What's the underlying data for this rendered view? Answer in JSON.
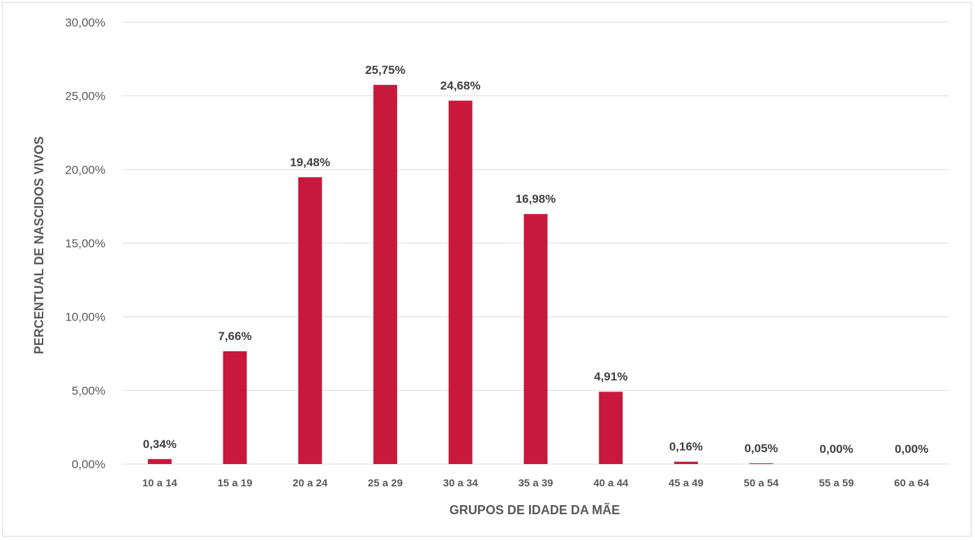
{
  "chart_data": {
    "type": "bar",
    "categories": [
      "10 a 14",
      "15 a 19",
      "20 a 24",
      "25 a 29",
      "30 a 34",
      "35 a 39",
      "40 a 44",
      "45 a 49",
      "50 a 54",
      "55 a 59",
      "60 a 64"
    ],
    "values": [
      0.34,
      7.66,
      19.48,
      25.75,
      24.68,
      16.98,
      4.91,
      0.16,
      0.05,
      0.0,
      0.0
    ],
    "data_labels": [
      "0,34%",
      "7,66%",
      "19,48%",
      "25,75%",
      "24,68%",
      "16,98%",
      "4,91%",
      "0,16%",
      "0,05%",
      "0,00%",
      "0,00%"
    ],
    "title": "",
    "xlabel": "GRUPOS DE IDADE DA MÃE",
    "ylabel": "PERCENTUAL DE NASCIDOS VIVOS",
    "ylim": [
      0,
      30
    ],
    "yticks": [
      0,
      5,
      10,
      15,
      20,
      25,
      30
    ],
    "ytick_labels": [
      "0,00%",
      "5,00%",
      "10,00%",
      "15,00%",
      "20,00%",
      "25,00%",
      "30,00%"
    ],
    "grid": true,
    "legend": "none",
    "bar_color": "#c8193c"
  }
}
